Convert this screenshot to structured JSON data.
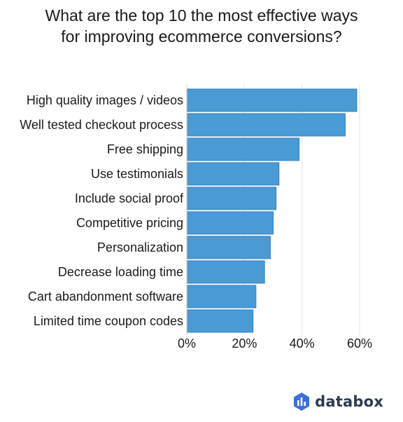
{
  "page": {
    "title_line1": "What are the top 10 the most effective ways",
    "title_line2": "for improving ecommerce conversions?"
  },
  "brand": {
    "name": "databox",
    "icon": "databox-logo-icon"
  },
  "chart_data": {
    "type": "bar",
    "orientation": "horizontal",
    "title": "What are the top 10 the most effective ways for improving ecommerce conversions?",
    "categories": [
      "High quality images / videos",
      "Well tested checkout process",
      "Free shipping",
      "Use testimonials",
      "Include social proof",
      "Competitive pricing",
      "Personalization",
      "Decrease loading time",
      "Cart abandonment software",
      "Limited time coupon codes"
    ],
    "values": [
      59,
      55,
      39,
      32,
      31,
      30,
      29,
      27,
      24,
      23
    ],
    "value_unit": "%",
    "xlim": [
      0,
      60
    ],
    "xticks": [
      "0%",
      "20%",
      "40%",
      "60%"
    ],
    "xlabel": "",
    "ylabel": "",
    "grid": "vertical",
    "bar_color": "#4a9ad4",
    "legend": "none"
  }
}
